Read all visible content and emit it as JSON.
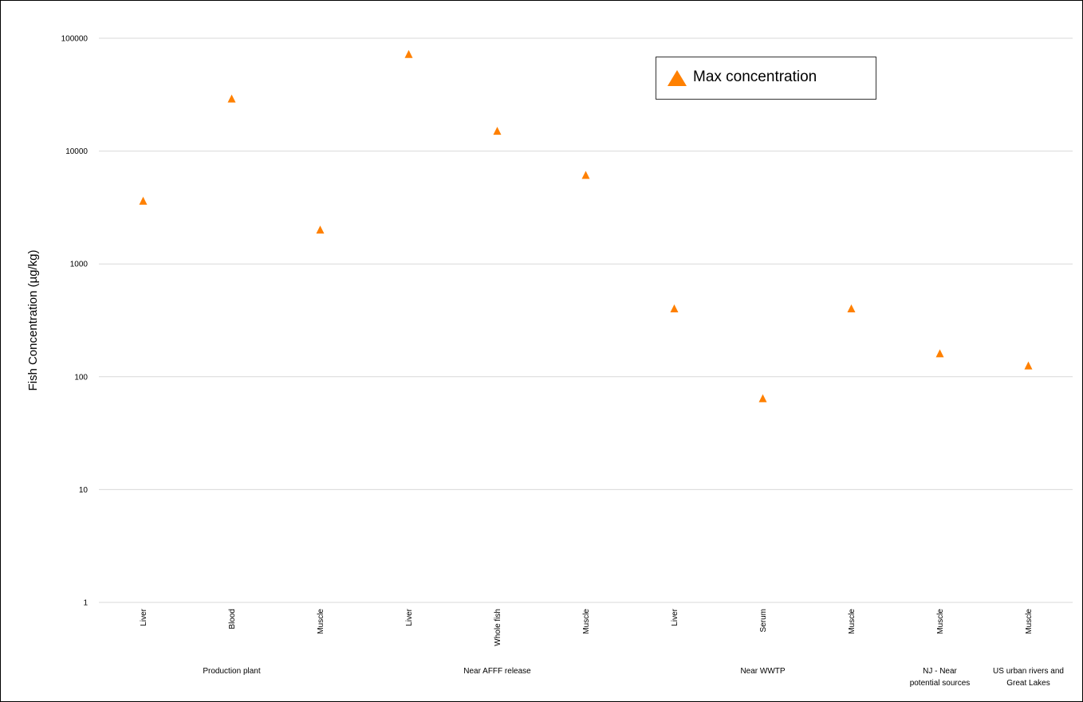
{
  "chart_data": {
    "type": "scatter",
    "ylabel": "Fish Concentration (µg/kg)",
    "yscale": "log",
    "ylim": [
      1,
      100000
    ],
    "yticks": [
      "100000",
      "10000",
      "1000",
      "100",
      "10",
      "1"
    ],
    "categories": [
      "Liver",
      "Blood",
      "Muscle",
      "Liver",
      "Whole fish",
      "Muscle",
      "Liver",
      "Serum",
      "Muscle",
      "Muscle",
      "Muscle"
    ],
    "groups": [
      {
        "label": "Production plant",
        "span": [
          0,
          2
        ]
      },
      {
        "label": "Near AFFF release",
        "span": [
          3,
          5
        ]
      },
      {
        "label": "Near WWTP",
        "span": [
          6,
          8
        ]
      },
      {
        "label": "NJ - Near potential sources",
        "span": [
          9,
          9
        ]
      },
      {
        "label": "US urban rivers and Great Lakes",
        "span": [
          10,
          10
        ]
      }
    ],
    "series": [
      {
        "name": "Max concentration",
        "color": "#ff8000",
        "marker": "triangle",
        "values": [
          3600,
          29000,
          2000,
          72000,
          15000,
          6100,
          400,
          64,
          400,
          160,
          125
        ]
      }
    ],
    "legend": {
      "position": "top-right",
      "label": "Max concentration"
    },
    "grid": true
  }
}
